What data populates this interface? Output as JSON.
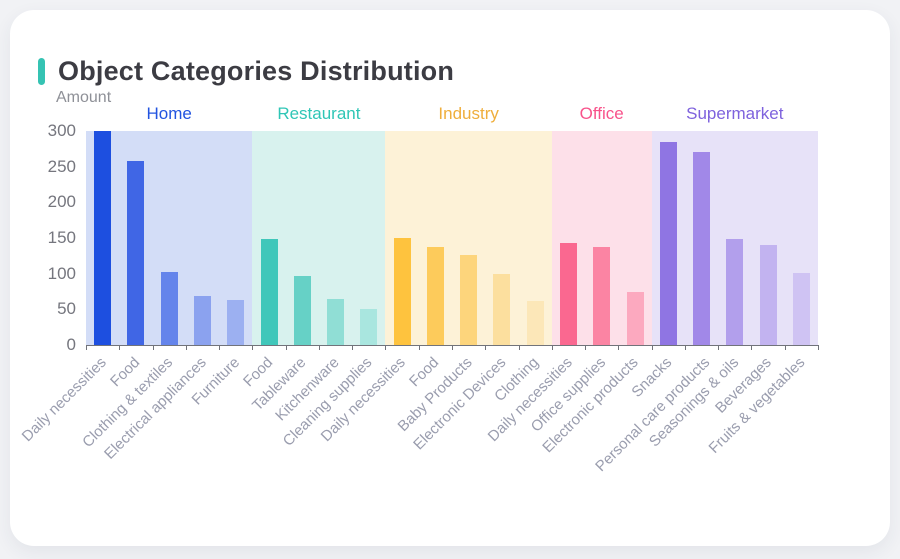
{
  "card": {
    "title": "Object Categories Distribution",
    "accent_color": "#35c3b3"
  },
  "chart_data": {
    "type": "bar",
    "title": "Object Categories Distribution",
    "xlabel": "",
    "ylabel": "Amount",
    "ylim": [
      0,
      300
    ],
    "y_ticks": [
      0,
      50,
      100,
      150,
      200,
      250,
      300
    ],
    "grid": false,
    "legend_position": "none",
    "axis_color": "#71737a",
    "x_tick_label_color": "#9a9dae",
    "y_tick_label_color": "#75767e",
    "groups": [
      {
        "name": "Home",
        "label_color": "#2254e0",
        "band_color": "#d3ddf7",
        "categories": [
          "Daily necessities",
          "Food",
          "Clothing & textiles",
          "Electrical appliances",
          "Furniture"
        ],
        "values": [
          300,
          258,
          102,
          69,
          63
        ],
        "bar_colors": [
          "#1d4fe0",
          "#4066e5",
          "#6484eb",
          "#8ba2ef",
          "#9cb0f1"
        ]
      },
      {
        "name": "Restaurant",
        "label_color": "#2fc6b6",
        "band_color": "#d8f2ee",
        "categories": [
          "Food",
          "Tableware",
          "Kitchenware",
          "Cleaning supplies"
        ],
        "values": [
          148,
          97,
          65,
          51
        ],
        "bar_colors": [
          "#40c7ba",
          "#66d1c6",
          "#90ded5",
          "#a9e6df"
        ]
      },
      {
        "name": "Industry",
        "label_color": "#efae3c",
        "band_color": "#fdf2d7",
        "categories": [
          "Daily necessities",
          "Food",
          "Baby Products",
          "Electronic Devices",
          "Clothing"
        ],
        "values": [
          150,
          138,
          126,
          99,
          62
        ],
        "bar_colors": [
          "#fec33e",
          "#fdcb5b",
          "#fdd57c",
          "#fcdf9e",
          "#fce7b8"
        ]
      },
      {
        "name": "Office",
        "label_color": "#f8538b",
        "band_color": "#fde0e9",
        "categories": [
          "Daily necessities",
          "Office supplies",
          "Electronic products"
        ],
        "values": [
          143,
          138,
          75
        ],
        "bar_colors": [
          "#fa6890",
          "#fb84a3",
          "#fca9bf"
        ]
      },
      {
        "name": "Supermarket",
        "label_color": "#7e62dd",
        "band_color": "#e7e2f8",
        "categories": [
          "Snacks",
          "Personal care products",
          "Seasonings & oils",
          "Beverages",
          "Fruits & vegetables"
        ],
        "values": [
          284,
          271,
          148,
          140,
          101
        ],
        "bar_colors": [
          "#8f75e3",
          "#a188e8",
          "#b29fec",
          "#c2b3f0",
          "#cfc3f3"
        ]
      }
    ]
  }
}
